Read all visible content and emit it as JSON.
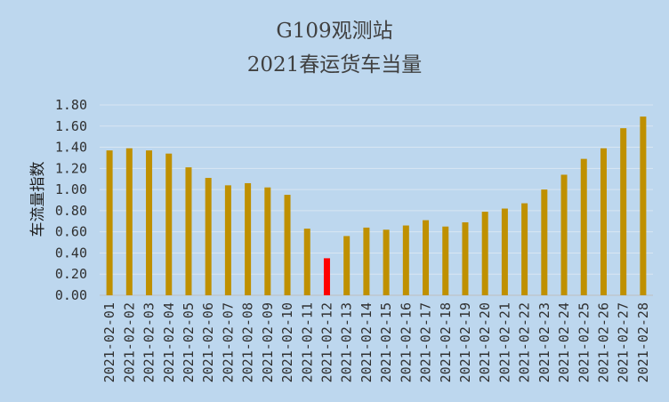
{
  "chart_data": {
    "type": "bar",
    "title_line1": "G109观测站",
    "title_line2": "2021春运货车当量",
    "xlabel": "",
    "ylabel": "车流量指数",
    "ylim": [
      0,
      1.8
    ],
    "yticks": [
      "0.00",
      "0.20",
      "0.40",
      "0.60",
      "0.80",
      "1.00",
      "1.20",
      "1.40",
      "1.60",
      "1.80"
    ],
    "grid": true,
    "legend": "none",
    "categories": [
      "2021-02-01",
      "2021-02-02",
      "2021-02-03",
      "2021-02-04",
      "2021-02-05",
      "2021-02-06",
      "2021-02-07",
      "2021-02-08",
      "2021-02-09",
      "2021-02-10",
      "2021-02-11",
      "2021-02-12",
      "2021-02-13",
      "2021-02-14",
      "2021-02-15",
      "2021-02-16",
      "2021-02-17",
      "2021-02-18",
      "2021-02-19",
      "2021-02-20",
      "2021-02-21",
      "2021-02-22",
      "2021-02-23",
      "2021-02-24",
      "2021-02-25",
      "2021-02-26",
      "2021-02-27",
      "2021-02-28"
    ],
    "values": [
      1.37,
      1.39,
      1.37,
      1.34,
      1.21,
      1.11,
      1.04,
      1.06,
      1.02,
      0.95,
      0.63,
      0.35,
      0.56,
      0.64,
      0.62,
      0.66,
      0.71,
      0.65,
      0.69,
      0.79,
      0.82,
      0.87,
      1.0,
      1.14,
      1.29,
      1.39,
      1.58,
      1.69
    ],
    "highlight_index": 11,
    "bar_color": "#bf9000",
    "highlight_color": "#ff0000",
    "background_color": "#bdd7ee"
  }
}
